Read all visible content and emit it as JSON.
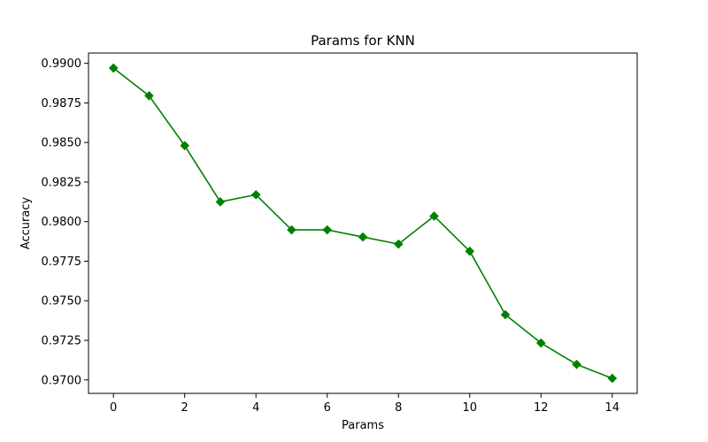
{
  "chart_data": {
    "type": "line",
    "title": "Params for KNN",
    "xlabel": "Params",
    "ylabel": "Accuracy",
    "xlim": [
      -0.7,
      14.7
    ],
    "ylim": [
      0.96915,
      0.99065
    ],
    "xticks": [
      0,
      2,
      4,
      6,
      8,
      10,
      12,
      14
    ],
    "xtick_labels": [
      "0",
      "2",
      "4",
      "6",
      "8",
      "10",
      "12",
      "14"
    ],
    "yticks": [
      0.97,
      0.9725,
      0.975,
      0.9775,
      0.98,
      0.9825,
      0.985,
      0.9875,
      0.99
    ],
    "ytick_labels": [
      "0.9700",
      "0.9725",
      "0.9750",
      "0.9775",
      "0.9800",
      "0.9825",
      "0.9850",
      "0.9875",
      "0.9900"
    ],
    "grid": false,
    "legend": false,
    "series": [
      {
        "color": "#008000",
        "marker": "diamond",
        "x": [
          0,
          1,
          2,
          3,
          4,
          5,
          6,
          7,
          8,
          9,
          10,
          11,
          12,
          13,
          14
        ],
        "values": [
          0.9897,
          0.98795,
          0.9848,
          0.98125,
          0.9817,
          0.97948,
          0.97948,
          0.97903,
          0.97858,
          0.98035,
          0.97813,
          0.97412,
          0.97233,
          0.97098,
          0.9701
        ]
      }
    ]
  }
}
